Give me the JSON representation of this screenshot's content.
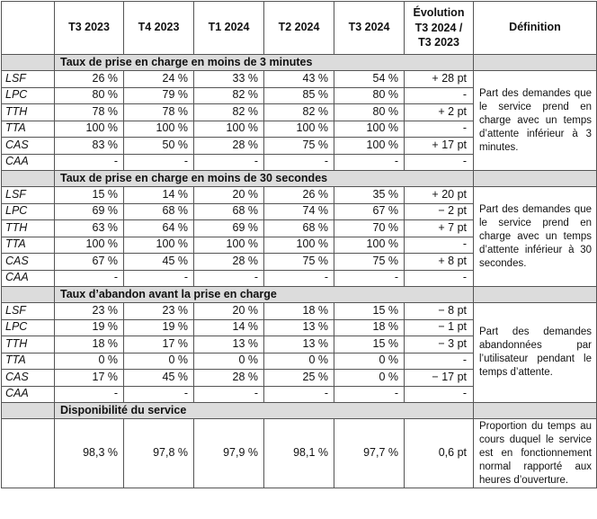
{
  "header": {
    "columns": [
      "T3 2023",
      "T4 2023",
      "T1 2024",
      "T2 2024",
      "T3 2024"
    ],
    "evolution_line1": "Évolution",
    "evolution_line2": "T3 2024 /",
    "evolution_line3": "T3 2023",
    "definition": "Définition"
  },
  "sections": [
    {
      "title": "Taux de prise en charge en moins de 3 minutes",
      "definition": "Part des demandes que le service prend en charge avec un temps d’attente inférieur à 3 minutes.",
      "rows": [
        {
          "label": "LSF",
          "values": [
            "26 %",
            "24 %",
            "33 %",
            "43 %",
            "54 %"
          ],
          "evolution": "+ 28 pt"
        },
        {
          "label": "LPC",
          "values": [
            "80 %",
            "79 %",
            "82 %",
            "85 %",
            "80 %"
          ],
          "evolution": "-"
        },
        {
          "label": "TTH",
          "values": [
            "78 %",
            "78 %",
            "82 %",
            "82 %",
            "80 %"
          ],
          "evolution": "+  2 pt"
        },
        {
          "label": "TTA",
          "values": [
            "100 %",
            "100 %",
            "100 %",
            "100 %",
            "100 %"
          ],
          "evolution": "-"
        },
        {
          "label": "CAS",
          "values": [
            "83 %",
            "50 %",
            "28 %",
            "75 %",
            "100 %"
          ],
          "evolution": "+ 17 pt"
        },
        {
          "label": "CAA",
          "values": [
            "-",
            "-",
            "-",
            "-",
            "-"
          ],
          "evolution": "-"
        }
      ]
    },
    {
      "title": "Taux de prise en charge en moins de 30 secondes",
      "definition": "Part des demandes que le service prend en charge avec un temps d’attente inférieur à 30 secondes.",
      "rows": [
        {
          "label": "LSF",
          "values": [
            "15 %",
            "14 %",
            "20 %",
            "26 %",
            "35 %"
          ],
          "evolution": "+ 20 pt"
        },
        {
          "label": "LPC",
          "values": [
            "69 %",
            "68 %",
            "68 %",
            "74 %",
            "67 %"
          ],
          "evolution": "−  2 pt"
        },
        {
          "label": "TTH",
          "values": [
            "63 %",
            "64 %",
            "69 %",
            "68 %",
            "70 %"
          ],
          "evolution": "+  7 pt"
        },
        {
          "label": "TTA",
          "values": [
            "100 %",
            "100 %",
            "100 %",
            "100 %",
            "100 %"
          ],
          "evolution": "-"
        },
        {
          "label": "CAS",
          "values": [
            "67 %",
            "45 %",
            "28 %",
            "75 %",
            "75 %"
          ],
          "evolution": "+  8 pt"
        },
        {
          "label": "CAA",
          "values": [
            "-",
            "-",
            "-",
            "-",
            "-"
          ],
          "evolution": "-"
        }
      ]
    },
    {
      "title": "Taux d’abandon avant la prise en charge",
      "definition": "Part des demandes abandonnées par l’utilisateur pendant le temps d’attente.",
      "rows": [
        {
          "label": "LSF",
          "values": [
            "23 %",
            "23 %",
            "20 %",
            "18 %",
            "15 %"
          ],
          "evolution": "−  8 pt"
        },
        {
          "label": "LPC",
          "values": [
            "19 %",
            "19 %",
            "14 %",
            "13 %",
            "18 %"
          ],
          "evolution": "−  1 pt"
        },
        {
          "label": "TTH",
          "values": [
            "18 %",
            "17 %",
            "13 %",
            "13 %",
            "15 %"
          ],
          "evolution": "−  3 pt"
        },
        {
          "label": "TTA",
          "values": [
            "0 %",
            "0 %",
            "0 %",
            "0 %",
            "0 %"
          ],
          "evolution": "-"
        },
        {
          "label": "CAS",
          "values": [
            "17 %",
            "45 %",
            "28 %",
            "25 %",
            "0 %"
          ],
          "evolution": "− 17 pt"
        },
        {
          "label": "CAA",
          "values": [
            "-",
            "-",
            "-",
            "-",
            "-"
          ],
          "evolution": "-"
        }
      ]
    }
  ],
  "availability": {
    "title": "Disponibilité du service",
    "values": [
      "98,3 %",
      "97,8 %",
      "97,9 %",
      "98,1 %",
      "97,7 %"
    ],
    "evolution": "0,6 pt",
    "definition": "Proportion du temps au cours duquel le service est en fonctionnement normal rapporté aux heures d’ouverture."
  }
}
